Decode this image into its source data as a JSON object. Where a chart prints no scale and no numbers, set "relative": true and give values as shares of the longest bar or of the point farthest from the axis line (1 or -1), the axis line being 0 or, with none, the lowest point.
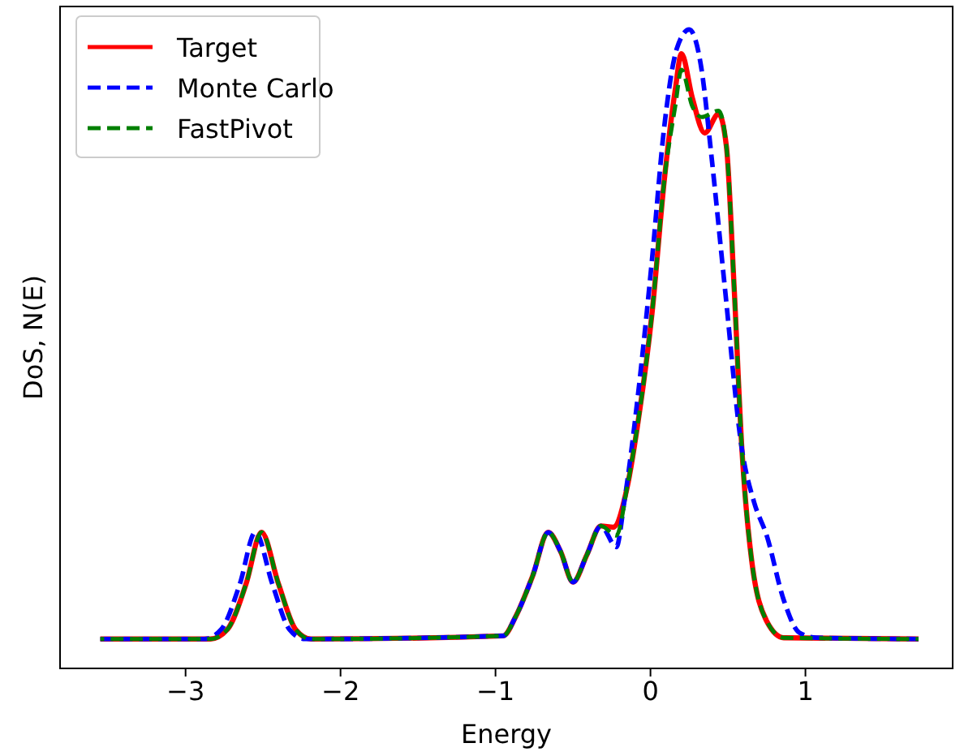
{
  "chart_data": {
    "type": "line",
    "xlabel": "Energy",
    "ylabel": "DoS, N(E)",
    "relative": true,
    "xlim": [
      -3.81,
      1.95
    ],
    "xticks": [
      {
        "value": -3,
        "label": "−3"
      },
      {
        "value": -2,
        "label": "−2"
      },
      {
        "value": -1,
        "label": "−1"
      },
      0,
      1
    ],
    "legend": "top left",
    "grid": false,
    "series": [
      {
        "name": "Target",
        "color": "#ff0000",
        "line_style": "solid",
        "x": [
          -3.55,
          -2.84,
          -2.73,
          -2.61,
          -2.51,
          -2.4,
          -2.29,
          -2.19,
          -0.95,
          -0.87,
          -0.76,
          -0.66,
          -0.58,
          -0.5,
          -0.41,
          -0.32,
          -0.24,
          -0.15,
          -0.08,
          0.01,
          0.09,
          0.16,
          0.2,
          0.27,
          0.35,
          0.44,
          0.49,
          0.54,
          0.59,
          0.65,
          0.75,
          0.86,
          1.73
        ],
        "values": [
          0.046,
          0.046,
          0.061,
          0.132,
          0.213,
          0.132,
          0.061,
          0.046,
          0.051,
          0.081,
          0.145,
          0.213,
          0.183,
          0.135,
          0.178,
          0.223,
          0.221,
          0.284,
          0.386,
          0.556,
          0.766,
          0.906,
          0.962,
          0.893,
          0.838,
          0.868,
          0.817,
          0.596,
          0.343,
          0.175,
          0.074,
          0.048,
          0.046
        ]
      },
      {
        "name": "Monte Carlo",
        "color": "#0000ff",
        "line_style": "dashed",
        "x": [
          -3.55,
          -2.88,
          -2.77,
          -2.65,
          -2.55,
          -2.44,
          -2.33,
          -2.23,
          -0.95,
          -0.87,
          -0.76,
          -0.66,
          -0.58,
          -0.5,
          -0.41,
          -0.32,
          -0.22,
          -0.17,
          -0.08,
          0.01,
          0.09,
          0.17,
          0.25,
          0.33,
          0.39,
          0.48,
          0.59,
          0.67,
          0.75,
          0.86,
          0.96,
          1.07,
          1.73
        ],
        "values": [
          0.046,
          0.046,
          0.061,
          0.132,
          0.213,
          0.132,
          0.061,
          0.046,
          0.051,
          0.081,
          0.145,
          0.213,
          0.183,
          0.135,
          0.178,
          0.223,
          0.19,
          0.259,
          0.429,
          0.64,
          0.85,
          0.97,
          1,
          0.937,
          0.81,
          0.596,
          0.343,
          0.259,
          0.208,
          0.107,
          0.056,
          0.048,
          0.046
        ]
      },
      {
        "name": "FastPivot",
        "color": "#008000",
        "line_style": "dashed",
        "x": [
          -3.55,
          -2.84,
          -2.73,
          -2.61,
          -2.51,
          -2.4,
          -2.29,
          -2.19,
          -0.95,
          -0.87,
          -0.76,
          -0.66,
          -0.58,
          -0.5,
          -0.41,
          -0.32,
          -0.22,
          -0.15,
          -0.08,
          0.01,
          0.09,
          0.16,
          0.2,
          0.27,
          0.33,
          0.44,
          0.49,
          0.54,
          0.59,
          0.65,
          0.75,
          0.86,
          1.73
        ],
        "values": [
          0.046,
          0.046,
          0.061,
          0.132,
          0.213,
          0.132,
          0.061,
          0.046,
          0.051,
          0.081,
          0.145,
          0.213,
          0.183,
          0.135,
          0.178,
          0.223,
          0.208,
          0.284,
          0.386,
          0.556,
          0.766,
          0.88,
          0.937,
          0.88,
          0.863,
          0.873,
          0.817,
          0.596,
          0.343,
          0.175,
          0.074,
          0.048,
          0.046
        ]
      }
    ]
  }
}
